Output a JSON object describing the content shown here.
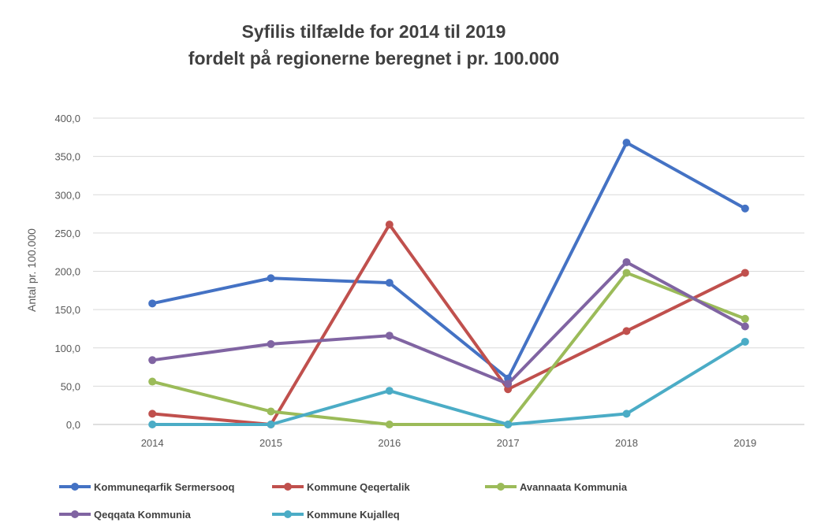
{
  "chart_data": {
    "type": "line",
    "title": "Syfilis tilfælde for 2014 til 2019",
    "subtitle": "fordelt på regionerne beregnet i pr. 100.000",
    "xlabel": "",
    "ylabel": "Antal pr. 100.000",
    "categories": [
      "2014",
      "2015",
      "2016",
      "2017",
      "2018",
      "2019"
    ],
    "ylim": [
      0,
      400
    ],
    "yticks": [
      "0,0",
      "50,0",
      "100,0",
      "150,0",
      "200,0",
      "250,0",
      "300,0",
      "350,0",
      "400,0"
    ],
    "grid": true,
    "legend_position": "bottom",
    "series": [
      {
        "name": "Kommuneqarfik Sermersooq",
        "color": "#4472c4",
        "values": [
          158,
          191,
          185,
          60,
          368,
          282
        ]
      },
      {
        "name": "Kommune Qeqertalik",
        "color": "#c0504d",
        "values": [
          14,
          0,
          261,
          46,
          122,
          198
        ]
      },
      {
        "name": "Avannaata Kommunia",
        "color": "#9bbb59",
        "values": [
          56,
          17,
          0,
          0,
          198,
          138
        ]
      },
      {
        "name": "Qeqqata Kommunia",
        "color": "#8064a2",
        "values": [
          84,
          105,
          116,
          53,
          212,
          128
        ]
      },
      {
        "name": "Kommune Kujalleq",
        "color": "#4bacc6",
        "values": [
          0,
          0,
          44,
          0,
          14,
          108
        ]
      }
    ]
  }
}
